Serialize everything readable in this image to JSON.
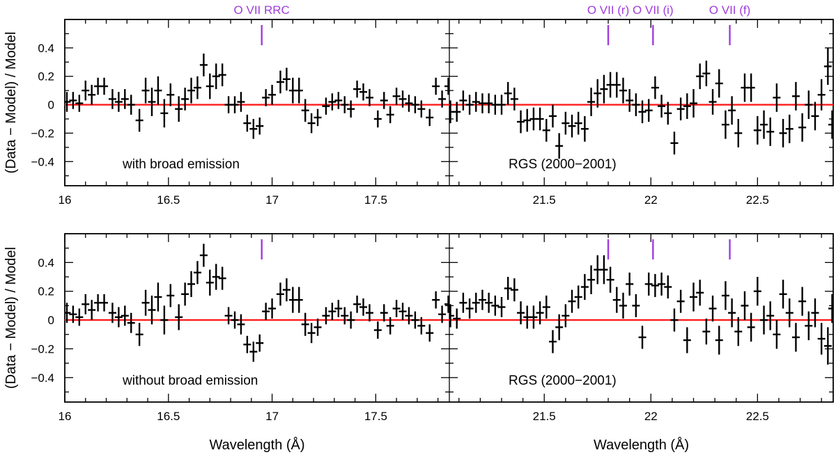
{
  "chart_data": {
    "type": "scatter",
    "title": "",
    "ylabel": "(Data − Model) / Model",
    "xlabel": "Wavelength (Å)",
    "ylim": [
      -0.57,
      0.6
    ],
    "yticks": [
      -0.4,
      -0.2,
      0,
      0.2,
      0.4
    ],
    "ytick_labels": [
      "−0.4",
      "−0.2",
      "0",
      "0.2",
      "0.4"
    ],
    "model_line": 0,
    "segments": [
      {
        "name": "left",
        "xlim": [
          16.0,
          17.855
        ],
        "xticks": [
          16,
          16.5,
          17,
          17.5
        ],
        "xtick_labels": [
          "16",
          "16.5",
          "17",
          "17.5"
        ]
      },
      {
        "name": "right",
        "xlim": [
          21.055,
          22.855
        ],
        "xticks": [
          21.5,
          22,
          22.5
        ],
        "xtick_labels": [
          "21.5",
          "22",
          "22.5"
        ]
      }
    ],
    "lines": [
      {
        "label": "O VII RRC",
        "wavelength": 16.95,
        "segment": 0
      },
      {
        "label": "O VII (r)",
        "wavelength": 21.8,
        "segment": 1
      },
      {
        "label": "O VII (i)",
        "wavelength": 22.01,
        "segment": 1
      },
      {
        "label": "O VII (f)",
        "wavelength": 22.37,
        "segment": 1
      }
    ],
    "panels": [
      {
        "label_left": "with broad emission",
        "label_right": "RGS (2000−2001)",
        "series": [
          {
            "segment": 0,
            "x": [
              16.01,
              16.04,
              16.07,
              16.1,
              16.13,
              16.16,
              16.19,
              16.23,
              16.26,
              16.29,
              16.32,
              16.36,
              16.39,
              16.42,
              16.45,
              16.48,
              16.51,
              16.55,
              16.58,
              16.61,
              16.64,
              16.67,
              16.7,
              16.73,
              16.76,
              16.79,
              16.82,
              16.85,
              16.88,
              16.91,
              16.94,
              16.97,
              17.0,
              17.04,
              17.07,
              17.1,
              17.13,
              17.16,
              17.19,
              17.22,
              17.26,
              17.29,
              17.32,
              17.35,
              17.38,
              17.41,
              17.44,
              17.47,
              17.51,
              17.54,
              17.57,
              17.6,
              17.63,
              17.66,
              17.69,
              17.72,
              17.76,
              17.79,
              17.82,
              17.85
            ],
            "y": [
              0.02,
              0.03,
              0.01,
              0.1,
              0.07,
              0.13,
              0.13,
              0.04,
              0.02,
              0.04,
              0.0,
              -0.11,
              0.1,
              0.02,
              0.1,
              -0.06,
              0.07,
              -0.03,
              0.04,
              0.1,
              0.12,
              0.28,
              0.13,
              0.2,
              0.21,
              0.0,
              0.0,
              0.02,
              -0.13,
              -0.17,
              -0.15,
              0.05,
              0.07,
              0.16,
              0.18,
              0.1,
              0.1,
              -0.04,
              -0.13,
              -0.09,
              -0.01,
              0.02,
              0.03,
              0.0,
              -0.03,
              0.11,
              0.09,
              0.05,
              -0.1,
              0.03,
              -0.07,
              0.06,
              0.04,
              0.01,
              0.0,
              -0.03,
              -0.09,
              0.13,
              0.04,
              0.13
            ],
            "err": [
              0.07,
              0.06,
              0.06,
              0.07,
              0.07,
              0.06,
              0.06,
              0.07,
              0.07,
              0.07,
              0.07,
              0.08,
              0.09,
              0.1,
              0.1,
              0.1,
              0.08,
              0.09,
              0.08,
              0.09,
              0.08,
              0.08,
              0.09,
              0.09,
              0.08,
              0.06,
              0.06,
              0.07,
              0.06,
              0.07,
              0.06,
              0.06,
              0.07,
              0.08,
              0.08,
              0.09,
              0.09,
              0.08,
              0.07,
              0.06,
              0.06,
              0.06,
              0.06,
              0.06,
              0.06,
              0.06,
              0.06,
              0.06,
              0.06,
              0.06,
              0.06,
              0.06,
              0.06,
              0.06,
              0.06,
              0.06,
              0.06,
              0.06,
              0.06,
              0.06
            ]
          },
          {
            "segment": 1,
            "x": [
              21.06,
              21.09,
              21.12,
              21.15,
              21.18,
              21.21,
              21.24,
              21.27,
              21.3,
              21.33,
              21.36,
              21.39,
              21.42,
              21.45,
              21.48,
              21.51,
              21.54,
              21.57,
              21.6,
              21.63,
              21.66,
              21.69,
              21.72,
              21.75,
              21.78,
              21.81,
              21.84,
              21.87,
              21.9,
              21.93,
              21.96,
              21.99,
              22.02,
              22.05,
              22.08,
              22.11,
              22.14,
              22.17,
              22.2,
              22.23,
              22.26,
              22.29,
              22.32,
              22.35,
              22.38,
              22.41,
              22.44,
              22.47,
              22.5,
              22.53,
              22.56,
              22.59,
              22.62,
              22.65,
              22.68,
              22.71,
              22.74,
              22.77,
              22.8,
              22.83,
              22.85
            ],
            "y": [
              -0.05,
              -0.05,
              0.03,
              0.0,
              0.02,
              0.01,
              0.01,
              0.0,
              0.0,
              0.08,
              0.04,
              -0.12,
              -0.11,
              -0.1,
              -0.1,
              -0.18,
              -0.08,
              -0.29,
              -0.13,
              -0.15,
              -0.13,
              -0.17,
              0.02,
              0.08,
              0.11,
              0.14,
              0.14,
              0.1,
              0.03,
              0.0,
              -0.05,
              -0.04,
              0.12,
              -0.01,
              -0.06,
              -0.27,
              -0.03,
              -0.01,
              0.01,
              0.2,
              0.22,
              0.02,
              0.15,
              -0.14,
              -0.04,
              -0.2,
              0.12,
              0.12,
              -0.18,
              -0.14,
              -0.19,
              0.05,
              -0.2,
              -0.17,
              0.06,
              -0.16,
              0.0,
              -0.08,
              0.07,
              0.27,
              -0.14
            ],
            "err": [
              0.08,
              0.07,
              0.07,
              0.07,
              0.07,
              0.07,
              0.07,
              0.07,
              0.07,
              0.08,
              0.08,
              0.08,
              0.08,
              0.08,
              0.08,
              0.08,
              0.08,
              0.09,
              0.08,
              0.08,
              0.08,
              0.09,
              0.1,
              0.1,
              0.1,
              0.09,
              0.09,
              0.09,
              0.08,
              0.08,
              0.08,
              0.08,
              0.08,
              0.08,
              0.08,
              0.08,
              0.08,
              0.09,
              0.1,
              0.09,
              0.09,
              0.09,
              0.1,
              0.1,
              0.1,
              0.1,
              0.1,
              0.1,
              0.1,
              0.1,
              0.1,
              0.1,
              0.1,
              0.1,
              0.1,
              0.1,
              0.1,
              0.1,
              0.11,
              0.13,
              0.1
            ]
          }
        ]
      },
      {
        "label_left": "without broad emission",
        "label_right": "RGS (2000−2001)",
        "series": [
          {
            "segment": 0,
            "x": [
              16.01,
              16.04,
              16.07,
              16.1,
              16.13,
              16.16,
              16.19,
              16.23,
              16.26,
              16.29,
              16.32,
              16.36,
              16.39,
              16.42,
              16.45,
              16.48,
              16.51,
              16.55,
              16.58,
              16.61,
              16.64,
              16.67,
              16.7,
              16.73,
              16.76,
              16.79,
              16.82,
              16.85,
              16.88,
              16.91,
              16.94,
              16.97,
              17.0,
              17.04,
              17.07,
              17.1,
              17.13,
              17.16,
              17.19,
              17.22,
              17.26,
              17.29,
              17.32,
              17.35,
              17.38,
              17.41,
              17.44,
              17.47,
              17.51,
              17.54,
              17.57,
              17.6,
              17.63,
              17.66,
              17.69,
              17.72,
              17.76,
              17.79,
              17.82,
              17.85
            ],
            "y": [
              0.05,
              0.04,
              0.02,
              0.11,
              0.07,
              0.12,
              0.12,
              0.05,
              0.02,
              0.03,
              -0.02,
              -0.1,
              0.12,
              0.07,
              0.16,
              0.0,
              0.17,
              0.02,
              0.18,
              0.25,
              0.33,
              0.45,
              0.26,
              0.3,
              0.29,
              0.03,
              0.0,
              -0.03,
              -0.17,
              -0.22,
              -0.16,
              0.06,
              0.08,
              0.18,
              0.21,
              0.14,
              0.14,
              -0.03,
              -0.09,
              -0.05,
              0.03,
              0.06,
              0.08,
              0.03,
              0.0,
              0.11,
              0.09,
              0.05,
              -0.07,
              0.05,
              -0.04,
              0.08,
              0.06,
              0.03,
              0.0,
              -0.04,
              -0.09,
              0.14,
              0.04,
              0.11
            ],
            "err": [
              0.07,
              0.06,
              0.06,
              0.07,
              0.07,
              0.06,
              0.06,
              0.07,
              0.07,
              0.07,
              0.07,
              0.08,
              0.09,
              0.1,
              0.1,
              0.1,
              0.08,
              0.09,
              0.08,
              0.09,
              0.08,
              0.08,
              0.09,
              0.09,
              0.08,
              0.06,
              0.06,
              0.07,
              0.06,
              0.07,
              0.06,
              0.06,
              0.07,
              0.08,
              0.08,
              0.09,
              0.09,
              0.08,
              0.07,
              0.06,
              0.06,
              0.06,
              0.06,
              0.06,
              0.06,
              0.06,
              0.06,
              0.06,
              0.06,
              0.06,
              0.06,
              0.06,
              0.06,
              0.06,
              0.06,
              0.06,
              0.06,
              0.06,
              0.06,
              0.06
            ]
          },
          {
            "segment": 1,
            "x": [
              21.06,
              21.09,
              21.12,
              21.15,
              21.18,
              21.21,
              21.24,
              21.27,
              21.3,
              21.33,
              21.36,
              21.39,
              21.42,
              21.45,
              21.48,
              21.51,
              21.54,
              21.57,
              21.6,
              21.63,
              21.66,
              21.69,
              21.72,
              21.75,
              21.78,
              21.81,
              21.84,
              21.87,
              21.9,
              21.93,
              21.96,
              21.99,
              22.02,
              22.05,
              22.08,
              22.11,
              22.14,
              22.17,
              22.2,
              22.23,
              22.26,
              22.29,
              22.32,
              22.35,
              22.38,
              22.41,
              22.44,
              22.47,
              22.5,
              22.53,
              22.56,
              22.59,
              22.62,
              22.65,
              22.68,
              22.71,
              22.74,
              22.77,
              22.8,
              22.83,
              22.85
            ],
            "y": [
              0.03,
              0.01,
              0.12,
              0.08,
              0.12,
              0.14,
              0.12,
              0.1,
              0.09,
              0.22,
              0.21,
              0.05,
              0.02,
              0.02,
              0.05,
              0.09,
              -0.15,
              -0.05,
              0.03,
              0.13,
              0.16,
              0.23,
              0.28,
              0.35,
              0.35,
              0.28,
              0.14,
              0.1,
              0.25,
              0.1,
              -0.12,
              0.25,
              0.24,
              0.25,
              0.23,
              0.0,
              0.13,
              -0.14,
              0.16,
              0.19,
              -0.08,
              0.08,
              -0.14,
              0.17,
              0.05,
              -0.08,
              0.1,
              -0.05,
              0.2,
              0.0,
              0.03,
              -0.1,
              0.18,
              0.05,
              -0.12,
              0.13,
              -0.04,
              0.05,
              -0.13,
              -0.18,
              0.08
            ],
            "err": [
              0.08,
              0.07,
              0.07,
              0.07,
              0.07,
              0.07,
              0.07,
              0.07,
              0.07,
              0.08,
              0.08,
              0.08,
              0.08,
              0.08,
              0.08,
              0.08,
              0.08,
              0.09,
              0.08,
              0.08,
              0.08,
              0.09,
              0.1,
              0.1,
              0.1,
              0.09,
              0.09,
              0.09,
              0.08,
              0.08,
              0.08,
              0.08,
              0.08,
              0.08,
              0.08,
              0.08,
              0.08,
              0.09,
              0.1,
              0.09,
              0.09,
              0.09,
              0.1,
              0.1,
              0.1,
              0.1,
              0.1,
              0.1,
              0.1,
              0.1,
              0.1,
              0.1,
              0.1,
              0.1,
              0.1,
              0.1,
              0.1,
              0.1,
              0.11,
              0.13,
              0.1
            ]
          }
        ]
      }
    ]
  },
  "colors": {
    "model_line": "#ff1a1a",
    "line_markers": "#a03cdc",
    "data": "#000000"
  }
}
